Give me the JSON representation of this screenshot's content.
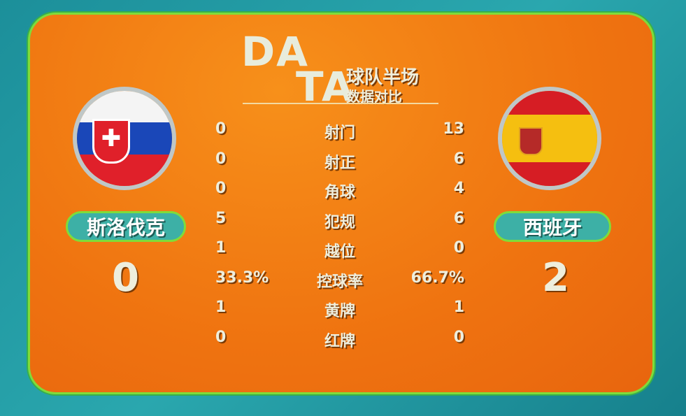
{
  "header": {
    "logo_top": "DA",
    "logo_bottom": "TA",
    "title_line1": "球队半场",
    "title_line2": "数据对比"
  },
  "home": {
    "name": "斯洛伐克",
    "score": "0",
    "flag": "slovakia-flag"
  },
  "away": {
    "name": "西班牙",
    "score": "2",
    "flag": "spain-flag"
  },
  "stats": [
    {
      "label": "射门",
      "home": "0",
      "away": "13"
    },
    {
      "label": "射正",
      "home": "0",
      "away": "6"
    },
    {
      "label": "角球",
      "home": "0",
      "away": "4"
    },
    {
      "label": "犯规",
      "home": "5",
      "away": "6"
    },
    {
      "label": "越位",
      "home": "1",
      "away": "0"
    },
    {
      "label": "控球率",
      "home": "33.3%",
      "away": "66.7%"
    },
    {
      "label": "黄牌",
      "home": "1",
      "away": "1"
    },
    {
      "label": "红牌",
      "home": "0",
      "away": "0"
    }
  ],
  "colors": {
    "panel": "#ef7310",
    "border": "#7fdc3a",
    "background": "#1c8f9a"
  }
}
